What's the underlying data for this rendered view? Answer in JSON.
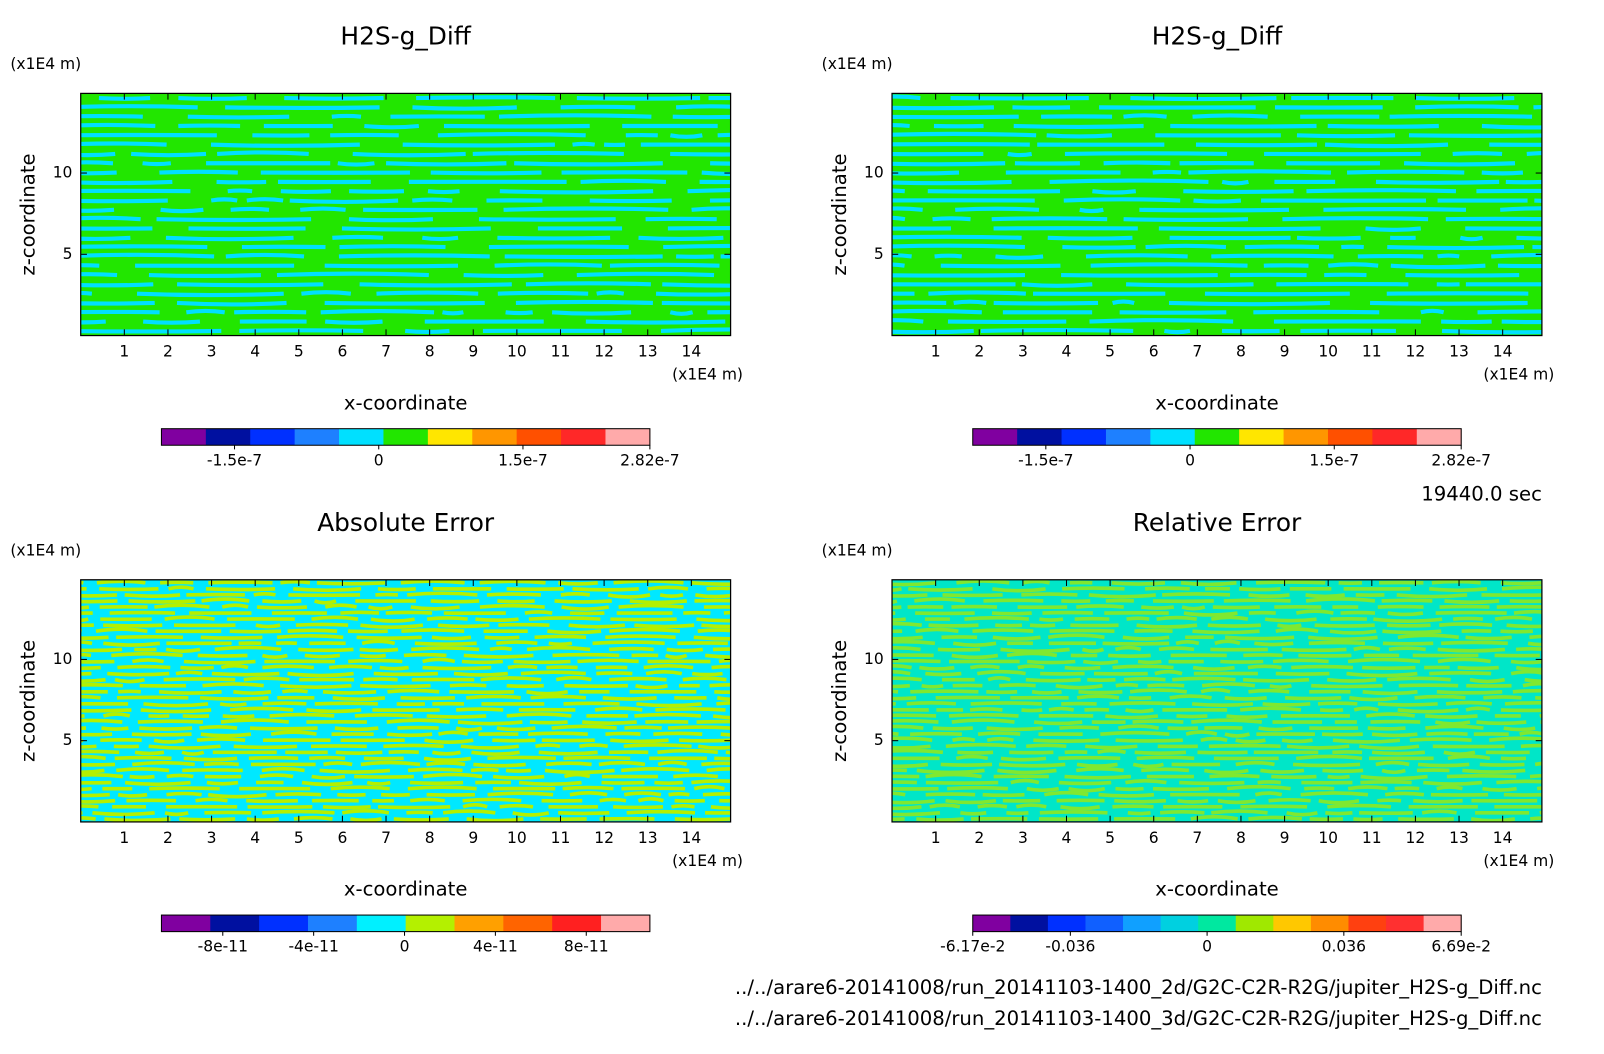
{
  "chart_data": [
    {
      "type": "contour",
      "title": "H2S-g_Diff",
      "x_label": "x-coordinate",
      "y_label": "z-coordinate",
      "x_unit": "(x1E4 m)",
      "y_unit": "(x1E4 m)",
      "xlim": [
        0,
        14.9
      ],
      "ylim": [
        0,
        14.9
      ],
      "xticks": [
        1,
        2,
        3,
        4,
        5,
        6,
        7,
        8,
        9,
        10,
        11,
        12,
        13,
        14
      ],
      "yticks": [
        5,
        10
      ],
      "field_colors": [
        "#22e600",
        "#00e0ff"
      ],
      "colorbar": {
        "colors": [
          "#8000a0",
          "#0010a0",
          "#0030ff",
          "#1e80ff",
          "#00e0ff",
          "#22e600",
          "#ffe600",
          "#ff9600",
          "#ff5000",
          "#ff2828",
          "#ffaaaa"
        ],
        "lim": [
          -2.26e-07,
          2.82e-07
        ],
        "ticks": [
          -1.5e-07,
          0,
          1.5e-07,
          2.82e-07
        ]
      }
    },
    {
      "type": "contour",
      "title": "H2S-g_Diff",
      "x_label": "x-coordinate",
      "y_label": "z-coordinate",
      "x_unit": "(x1E4 m)",
      "y_unit": "(x1E4 m)",
      "xlim": [
        0,
        14.9
      ],
      "ylim": [
        0,
        14.9
      ],
      "xticks": [
        1,
        2,
        3,
        4,
        5,
        6,
        7,
        8,
        9,
        10,
        11,
        12,
        13,
        14
      ],
      "yticks": [
        5,
        10
      ],
      "field_colors": [
        "#22e600",
        "#00e0ff"
      ],
      "colorbar": {
        "colors": [
          "#8000a0",
          "#0010a0",
          "#0030ff",
          "#1e80ff",
          "#00e0ff",
          "#22e600",
          "#ffe600",
          "#ff9600",
          "#ff5000",
          "#ff2828",
          "#ffaaaa"
        ],
        "lim": [
          -2.26e-07,
          2.82e-07
        ],
        "ticks": [
          -1.5e-07,
          0,
          1.5e-07,
          2.82e-07
        ]
      }
    },
    {
      "type": "contour",
      "title": "Absolute Error",
      "x_label": "x-coordinate",
      "y_label": "z-coordinate",
      "x_unit": "(x1E4 m)",
      "y_unit": "(x1E4 m)",
      "xlim": [
        0,
        14.9
      ],
      "ylim": [
        0,
        14.9
      ],
      "xticks": [
        1,
        2,
        3,
        4,
        5,
        6,
        7,
        8,
        9,
        10,
        11,
        12,
        13,
        14
      ],
      "yticks": [
        5,
        10
      ],
      "field_colors": [
        "#00e8ff",
        "#b4f000"
      ],
      "colorbar": {
        "colors": [
          "#8000a0",
          "#0010a0",
          "#0030ff",
          "#1e80ff",
          "#00f0ff",
          "#b4f000",
          "#ffa000",
          "#ff6400",
          "#ff2020",
          "#ffaaaa"
        ],
        "lim": [
          -1.07e-10,
          1.08e-10
        ],
        "ticks": [
          -8e-11,
          -4e-11,
          0,
          4e-11,
          8e-11
        ]
      }
    },
    {
      "type": "contour",
      "title": "Relative Error",
      "x_label": "x-coordinate",
      "y_label": "z-coordinate",
      "x_unit": "(x1E4 m)",
      "y_unit": "(x1E4 m)",
      "xlim": [
        0,
        14.9
      ],
      "ylim": [
        0,
        14.9
      ],
      "xticks": [
        1,
        2,
        3,
        4,
        5,
        6,
        7,
        8,
        9,
        10,
        11,
        12,
        13,
        14
      ],
      "yticks": [
        5,
        10
      ],
      "field_colors": [
        "#00e6c8",
        "#80e830"
      ],
      "colorbar": {
        "colors": [
          "#8000a0",
          "#0010a0",
          "#0030ff",
          "#1060ff",
          "#10a0ff",
          "#00d0e0",
          "#00e8a0",
          "#a0e800",
          "#ffc800",
          "#ff8c00",
          "#ff4010",
          "#ff3030",
          "#ffaaaa"
        ],
        "lim": [
          -0.0617,
          0.0669
        ],
        "ticks": [
          {
            "value": -0.0617,
            "label": "-6.17e-2"
          },
          -0.036,
          0,
          0.036,
          {
            "value": 0.0669,
            "label": "6.69e-2"
          }
        ]
      }
    }
  ],
  "time_label": "19440.0 sec",
  "files": [
    "../../arare6-20141008/run_20141103-1400_2d/G2C-C2R-R2G/jupiter_H2S-g_Diff.nc",
    "../../arare6-20141008/run_20141103-1400_3d/G2C-C2R-R2G/jupiter_H2S-g_Diff.nc"
  ]
}
